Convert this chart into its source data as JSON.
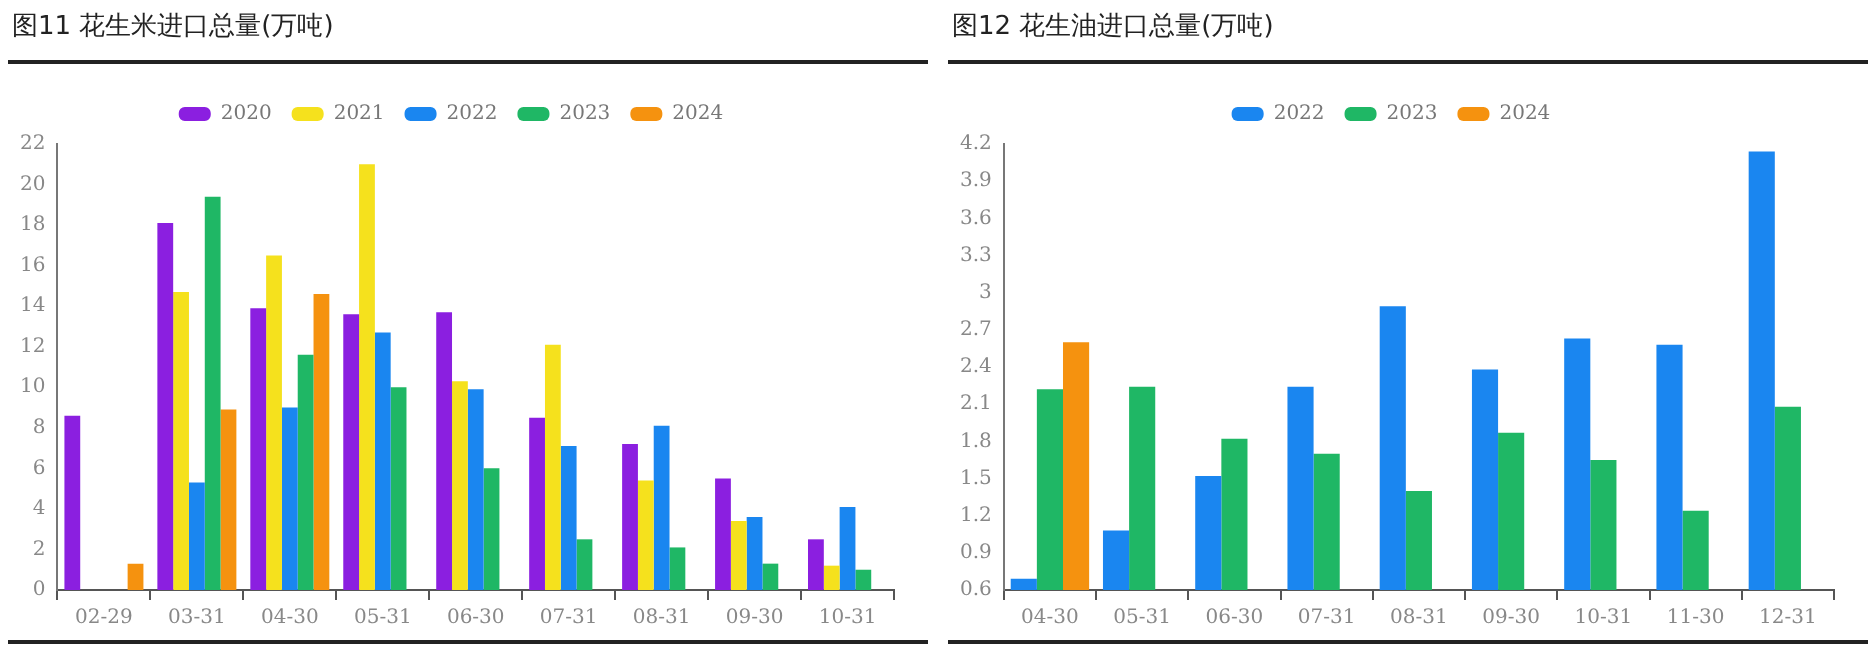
{
  "chart_data": [
    {
      "type": "bar",
      "title": "图11 花生米进口总量(万吨)",
      "categories": [
        "02-29",
        "03-31",
        "04-30",
        "05-31",
        "06-30",
        "07-31",
        "08-31",
        "09-30",
        "10-31"
      ],
      "ylim": [
        0,
        22
      ],
      "yticks": [
        0,
        2,
        4,
        6,
        8,
        10,
        12,
        14,
        16,
        18,
        20,
        22
      ],
      "grid": false,
      "legend": "top",
      "series": [
        {
          "name": "2020",
          "color": "#8b1fe0",
          "values": [
            8.6,
            18.1,
            13.9,
            13.6,
            13.7,
            8.5,
            7.2,
            5.5,
            2.5
          ]
        },
        {
          "name": "2021",
          "color": "#f5e11d",
          "values": [
            null,
            14.7,
            16.5,
            21.0,
            10.3,
            12.1,
            5.4,
            3.4,
            1.2
          ]
        },
        {
          "name": "2022",
          "color": "#1a86f0",
          "values": [
            null,
            5.3,
            9.0,
            12.7,
            9.9,
            7.1,
            8.1,
            3.6,
            4.1
          ]
        },
        {
          "name": "2023",
          "color": "#1fb765",
          "values": [
            null,
            19.4,
            11.6,
            10.0,
            6.0,
            2.5,
            2.1,
            1.3,
            1.0
          ]
        },
        {
          "name": "2024",
          "color": "#f5920f",
          "values": [
            1.3,
            8.9,
            14.6,
            null,
            null,
            null,
            null,
            null,
            null
          ]
        }
      ]
    },
    {
      "type": "bar",
      "title": "图12 花生油进口总量(万吨)",
      "categories": [
        "04-30",
        "05-31",
        "06-30",
        "07-31",
        "08-31",
        "09-30",
        "10-31",
        "11-30",
        "12-31"
      ],
      "ylim": [
        0.6,
        4.2
      ],
      "yticks": [
        0.6,
        0.9,
        1.2,
        1.5,
        1.8,
        2.1,
        2.4,
        2.7,
        3,
        3.3,
        3.6,
        3.9,
        4.2
      ],
      "grid": false,
      "legend": "top",
      "series": [
        {
          "name": "2022",
          "color": "#1a86f0",
          "values": [
            0.69,
            1.08,
            1.52,
            2.24,
            2.89,
            2.38,
            2.63,
            2.58,
            4.14
          ]
        },
        {
          "name": "2023",
          "color": "#1fb765",
          "values": [
            2.22,
            2.24,
            1.82,
            1.7,
            1.4,
            1.87,
            1.65,
            1.24,
            2.08
          ]
        },
        {
          "name": "2024",
          "color": "#f5920f",
          "values": [
            2.6,
            null,
            null,
            null,
            null,
            null,
            null,
            null,
            null
          ]
        }
      ]
    }
  ]
}
